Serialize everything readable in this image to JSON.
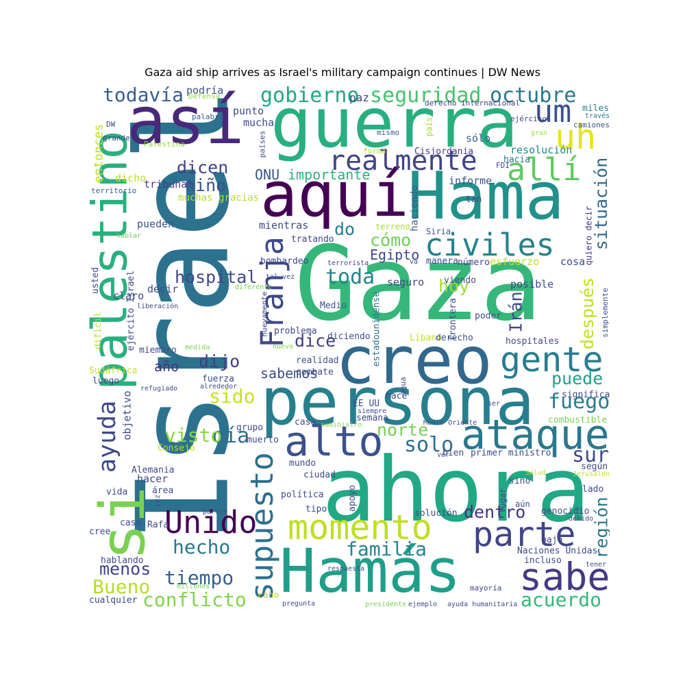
{
  "title": "Gaza aid ship arrives as Israel's military campaign continues | DW News",
  "words": [
    {
      "text": "Gaza",
      "color": "#35b779"
    },
    {
      "text": "Israel",
      "color": "#2c728e"
    },
    {
      "text": "ahora",
      "color": "#22a884"
    },
    {
      "text": "Hamás",
      "color": "#1f9e89"
    },
    {
      "text": "guerra",
      "color": "#29af7f"
    },
    {
      "text": "persona",
      "color": "#277f8e"
    },
    {
      "text": "Hama",
      "color": "#21918c"
    },
    {
      "text": "creo",
      "color": "#31688e"
    },
    {
      "text": "así",
      "color": "#482878"
    },
    {
      "text": "aquí",
      "color": "#440154"
    },
    {
      "text": "palestino",
      "color": "#2ab07f"
    },
    {
      "text": "si",
      "color": "#7ad151"
    },
    {
      "text": "Franja",
      "color": "#3e4a89"
    },
    {
      "text": "alto",
      "color": "#3b528b"
    },
    {
      "text": "ataque",
      "color": "#2a788e"
    },
    {
      "text": "gente",
      "color": "#287d8e"
    },
    {
      "text": "momento",
      "color": "#bddf26"
    },
    {
      "text": "parte",
      "color": "#414487"
    },
    {
      "text": "sabe",
      "color": "#443a83"
    },
    {
      "text": "civiles",
      "color": "#26828e"
    },
    {
      "text": "Unido",
      "color": "#440154"
    },
    {
      "text": "supuesto",
      "color": "#2d708e"
    },
    {
      "text": "realmente",
      "color": "#414487"
    },
    {
      "text": "allí",
      "color": "#5ec962"
    },
    {
      "text": "uh",
      "color": "#e7e419"
    },
    {
      "text": "um",
      "color": "#3b528b"
    },
    {
      "text": "ayuda",
      "color": "#3e4989"
    },
    {
      "text": "octubre",
      "color": "#2a768e"
    },
    {
      "text": "seguridad",
      "color": "#48c16e"
    },
    {
      "text": "gobierno",
      "color": "#22a785"
    },
    {
      "text": "todavía",
      "color": "#355f8d"
    },
    {
      "text": "situación",
      "color": "#31688e"
    },
    {
      "text": "después",
      "color": "#c2df23"
    },
    {
      "text": "hospital",
      "color": "#3f4788"
    },
    {
      "text": "toda",
      "color": "#25858e"
    },
    {
      "text": "cómo",
      "color": "#6ece58"
    },
    {
      "text": "hoy",
      "color": "#a0da39"
    },
    {
      "text": "dice",
      "color": "#423f85"
    },
    {
      "text": "dijo",
      "color": "#433e85"
    },
    {
      "text": "sabemos",
      "color": "#3e4a89"
    },
    {
      "text": "dicen",
      "color": "#414487"
    },
    {
      "text": "niño",
      "color": "#3b528b"
    },
    {
      "text": "ONU",
      "color": "#3a548c"
    },
    {
      "text": "importante",
      "color": "#2cb17e"
    },
    {
      "text": "do",
      "color": "#287c8e"
    },
    {
      "text": "Egipto",
      "color": "#3f4889"
    },
    {
      "text": "sido",
      "color": "#c8e020"
    },
    {
      "text": "día",
      "color": "#2e6e8e"
    },
    {
      "text": "visto",
      "color": "#8bd646"
    },
    {
      "text": "año",
      "color": "#46337e"
    },
    {
      "text": "norte",
      "color": "#75d054"
    },
    {
      "text": "solo",
      "color": "#2f6c8e"
    },
    {
      "text": "sur",
      "color": "#3e4a89"
    },
    {
      "text": "puede",
      "color": "#1fa088"
    },
    {
      "text": "fuego",
      "color": "#287c8e"
    },
    {
      "text": "Irán",
      "color": "#3f4889"
    },
    {
      "text": "dentro",
      "color": "#46327e"
    },
    {
      "text": "región",
      "color": "#2a788e"
    },
    {
      "text": "familia",
      "color": "#25838e"
    },
    {
      "text": "hecho",
      "color": "#2a788e"
    },
    {
      "text": "menos",
      "color": "#414487"
    },
    {
      "text": "tiempo",
      "color": "#355f8d"
    },
    {
      "text": "Bueno",
      "color": "#b5de2b"
    },
    {
      "text": "conflicto",
      "color": "#7fd34e"
    },
    {
      "text": "acuerdo",
      "color": "#35b779"
    },
    {
      "text": "entonces",
      "color": "#bddf26"
    },
    {
      "text": "tribunal",
      "color": "#443a83"
    },
    {
      "text": "muchas gracias",
      "color": "#b5de2b"
    },
    {
      "text": "informe",
      "color": "#3b528b"
    },
    {
      "text": "tan",
      "color": "#3e4c8a"
    },
    {
      "text": "resolución",
      "color": "#25848e"
    },
    {
      "text": "hacia",
      "color": "#2c738e"
    },
    {
      "text": "sólo",
      "color": "#32658e"
    },
    {
      "text": "haciendo",
      "color": "#38588c"
    },
    {
      "text": "Cisjordania",
      "color": "#453882"
    },
    {
      "text": "país",
      "color": "#a8db34"
    },
    {
      "text": "mismo",
      "color": "#365d8d"
    },
    {
      "text": "paz",
      "color": "#3f4788"
    },
    {
      "text": "punto",
      "color": "#3e4a89"
    },
    {
      "text": "mucha",
      "color": "#3e4c8a"
    },
    {
      "text": "podría",
      "color": "#3b528b"
    },
    {
      "text": "Defensa",
      "color": "#90d743"
    },
    {
      "text": "palabra",
      "color": "#38588c"
    },
    {
      "text": "países",
      "color": "#3b528b"
    },
    {
      "text": "ejército",
      "color": "#3f4788"
    },
    {
      "text": "derecho internacional",
      "color": "#453781"
    },
    {
      "text": "gran",
      "color": "#9fda3a"
    },
    {
      "text": "camiones",
      "color": "#3b528b"
    },
    {
      "text": "miles",
      "color": "#25858e"
    },
    {
      "text": "través",
      "color": "#2d708e"
    },
    {
      "text": "DW",
      "color": "#3e4a89"
    },
    {
      "text": "grande",
      "color": "#3f4788"
    },
    {
      "text": "Palestina",
      "color": "#90d743"
    },
    {
      "text": "forma",
      "color": "#b5de2b"
    },
    {
      "text": "FDI",
      "color": "#414487"
    },
    {
      "text": "dicho",
      "color": "#bddf26"
    },
    {
      "text": "territorio",
      "color": "#365c8d"
    },
    {
      "text": "pueden",
      "color": "#3b528b"
    },
    {
      "text": "hablar",
      "color": "#6ece58"
    },
    {
      "text": "mientras",
      "color": "#3e4a89"
    },
    {
      "text": "tratando",
      "color": "#414487"
    },
    {
      "text": "terreno",
      "color": "#a8db34"
    },
    {
      "text": "Siria",
      "color": "#3b528b"
    },
    {
      "text": "quiero decir",
      "color": "#46337e"
    },
    {
      "text": "terrorista",
      "color": "#414487"
    },
    {
      "text": "va",
      "color": "#3e4a89"
    },
    {
      "text": "manera",
      "color": "#3f4788"
    },
    {
      "text": "número",
      "color": "#414487"
    },
    {
      "text": "esfuerzo",
      "color": "#bddf26"
    },
    {
      "text": "cosa",
      "color": "#3e4a89"
    },
    {
      "text": "bombardeo",
      "color": "#3e4a89"
    },
    {
      "text": "tal vez",
      "color": "#3b528b"
    },
    {
      "text": "diferente",
      "color": "#7ad151"
    },
    {
      "text": "seguro",
      "color": "#3e4a89"
    },
    {
      "text": "viendo",
      "color": "#3e4c8a"
    },
    {
      "text": "posible",
      "color": "#3e4a89"
    },
    {
      "text": "simplemente",
      "color": "#3b528b"
    },
    {
      "text": "usted",
      "color": "#3f4788"
    },
    {
      "text": "claro",
      "color": "#3e4a89"
    },
    {
      "text": "ejército Israel",
      "color": "#3e4a89"
    },
    {
      "text": "decir",
      "color": "#3e4a89"
    },
    {
      "text": "liberación",
      "color": "#3e4a89"
    },
    {
      "text": "Medio",
      "color": "#3b528b"
    },
    {
      "text": "estadounidense",
      "color": "#2c738e"
    },
    {
      "text": "frontera",
      "color": "#3e4a89"
    },
    {
      "text": "poder",
      "color": "#3e4a89"
    },
    {
      "text": "nuevamente",
      "color": "#3f4788"
    },
    {
      "text": "Líbano",
      "color": "#bddf26"
    },
    {
      "text": "derecho",
      "color": "#3b528b"
    },
    {
      "text": "hospitales",
      "color": "#3e4a89"
    },
    {
      "text": "difícil",
      "color": "#bddf26"
    },
    {
      "text": "problema",
      "color": "#3e4a89"
    },
    {
      "text": "diciendo",
      "color": "#3e4a89"
    },
    {
      "text": "miembro",
      "color": "#3e4a89"
    },
    {
      "text": "medida",
      "color": "#7ad151"
    },
    {
      "text": "nuevo",
      "color": "#7ad151"
    },
    {
      "text": "realidad",
      "color": "#3b528b"
    },
    {
      "text": "Sudáfrica",
      "color": "#bddf26"
    },
    {
      "text": "luego",
      "color": "#3e4a89"
    },
    {
      "text": "fuerza",
      "color": "#3e4a89"
    },
    {
      "text": "alrededor",
      "color": "#3e4a89"
    },
    {
      "text": "refugiado",
      "color": "#3e4a89"
    },
    {
      "text": "agua",
      "color": "#3e4a89"
    },
    {
      "text": "combate",
      "color": "#3e4a89"
    },
    {
      "text": "objetivo",
      "color": "#3e4a89"
    },
    {
      "text": "EE UU",
      "color": "#3e4a89"
    },
    {
      "text": "hace",
      "color": "#3e4a89"
    },
    {
      "text": "siempre",
      "color": "#3e4a89"
    },
    {
      "text": "ser",
      "color": "#3e4a89"
    },
    {
      "text": "significa",
      "color": "#3e4a89"
    },
    {
      "text": "semana",
      "color": "#3e4a89"
    },
    {
      "text": "combustible",
      "color": "#7ad151"
    },
    {
      "text": "grupo",
      "color": "#3e4a89"
    },
    {
      "text": "casa",
      "color": "#3e4a89"
    },
    {
      "text": "suministro",
      "color": "#7ad151"
    },
    {
      "text": "Medio Oriente",
      "color": "#3e4a89"
    },
    {
      "text": "muerto",
      "color": "#3e4a89"
    },
    {
      "text": "Consejo",
      "color": "#bddf26"
    },
    {
      "text": "bien",
      "color": "#3e4a89"
    },
    {
      "text": "primer ministro",
      "color": "#3e4a89"
    },
    {
      "text": "mundo",
      "color": "#3e4a89"
    },
    {
      "text": "ver",
      "color": "#3e4a89"
    },
    {
      "text": "según",
      "color": "#3e4a89"
    },
    {
      "text": "Alemania",
      "color": "#3e4a89"
    },
    {
      "text": "hacer",
      "color": "#3e4a89"
    },
    {
      "text": "ciudad",
      "color": "#3e4a89"
    },
    {
      "text": "Salud",
      "color": "#bddf26"
    },
    {
      "text": "Jerusalén",
      "color": "#bddf26"
    },
    {
      "text": "vida",
      "color": "#3e4a89"
    },
    {
      "text": "área",
      "color": "#3e4a89"
    },
    {
      "text": "política",
      "color": "#3e4a89"
    },
    {
      "text": "sino",
      "color": "#3e4a89"
    },
    {
      "text": "lado",
      "color": "#3e4a89"
    },
    {
      "text": "apoyo",
      "color": "#3e4a89"
    },
    {
      "text": "lugar",
      "color": "#3e4a89"
    },
    {
      "text": "tipo",
      "color": "#3e4a89"
    },
    {
      "text": "vez",
      "color": "#3e4a89"
    },
    {
      "text": "aún",
      "color": "#3e4a89"
    },
    {
      "text": "solución",
      "color": "#3e4a89"
    },
    {
      "text": "genocidio",
      "color": "#3e4a89"
    },
    {
      "text": "debido",
      "color": "#3e4a89"
    },
    {
      "text": "parece",
      "color": "#3e4a89"
    },
    {
      "text": "caso",
      "color": "#3e4a89"
    },
    {
      "text": "Rafa",
      "color": "#3e4a89"
    },
    {
      "text": "cree",
      "color": "#3e4a89"
    },
    {
      "text": "bajo",
      "color": "#3e4a89"
    },
    {
      "text": "Naciones Unidas",
      "color": "#3e4a89"
    },
    {
      "text": "incluso",
      "color": "#3e4a89"
    },
    {
      "text": "hablando",
      "color": "#3e4a89"
    },
    {
      "text": "tener",
      "color": "#3e4a89"
    },
    {
      "text": "respuesta",
      "color": "#3e4a89"
    },
    {
      "text": "millones",
      "color": "#7ad151"
    },
    {
      "text": "mayoría",
      "color": "#3e4a89"
    },
    {
      "text": "cualquier",
      "color": "#3e4a89"
    },
    {
      "text": "cabo",
      "color": "#bddf26"
    },
    {
      "text": "pregunta",
      "color": "#3e4a89"
    },
    {
      "text": "presidente",
      "color": "#7ad151"
    },
    {
      "text": "ejemplo",
      "color": "#3e4a89"
    },
    {
      "text": "ayuda humanitaria",
      "color": "#3e4a89"
    }
  ]
}
